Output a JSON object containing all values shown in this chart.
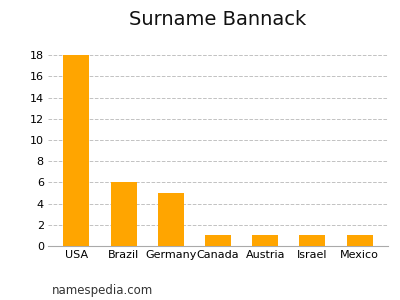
{
  "title": "Surname Bannack",
  "categories": [
    "USA",
    "Brazil",
    "Germany",
    "Canada",
    "Austria",
    "Israel",
    "Mexico"
  ],
  "values": [
    18,
    6,
    5,
    1,
    1,
    1,
    1
  ],
  "bar_color": "#FFA500",
  "background_color": "#ffffff",
  "yticks": [
    0,
    2,
    4,
    6,
    8,
    10,
    12,
    14,
    16,
    18
  ],
  "ylim": [
    0,
    19.8
  ],
  "grid_color": "#bbbbbb",
  "title_fontsize": 14,
  "tick_fontsize": 8,
  "footer_text": "namespedia.com",
  "footer_fontsize": 8.5,
  "bar_width": 0.55
}
